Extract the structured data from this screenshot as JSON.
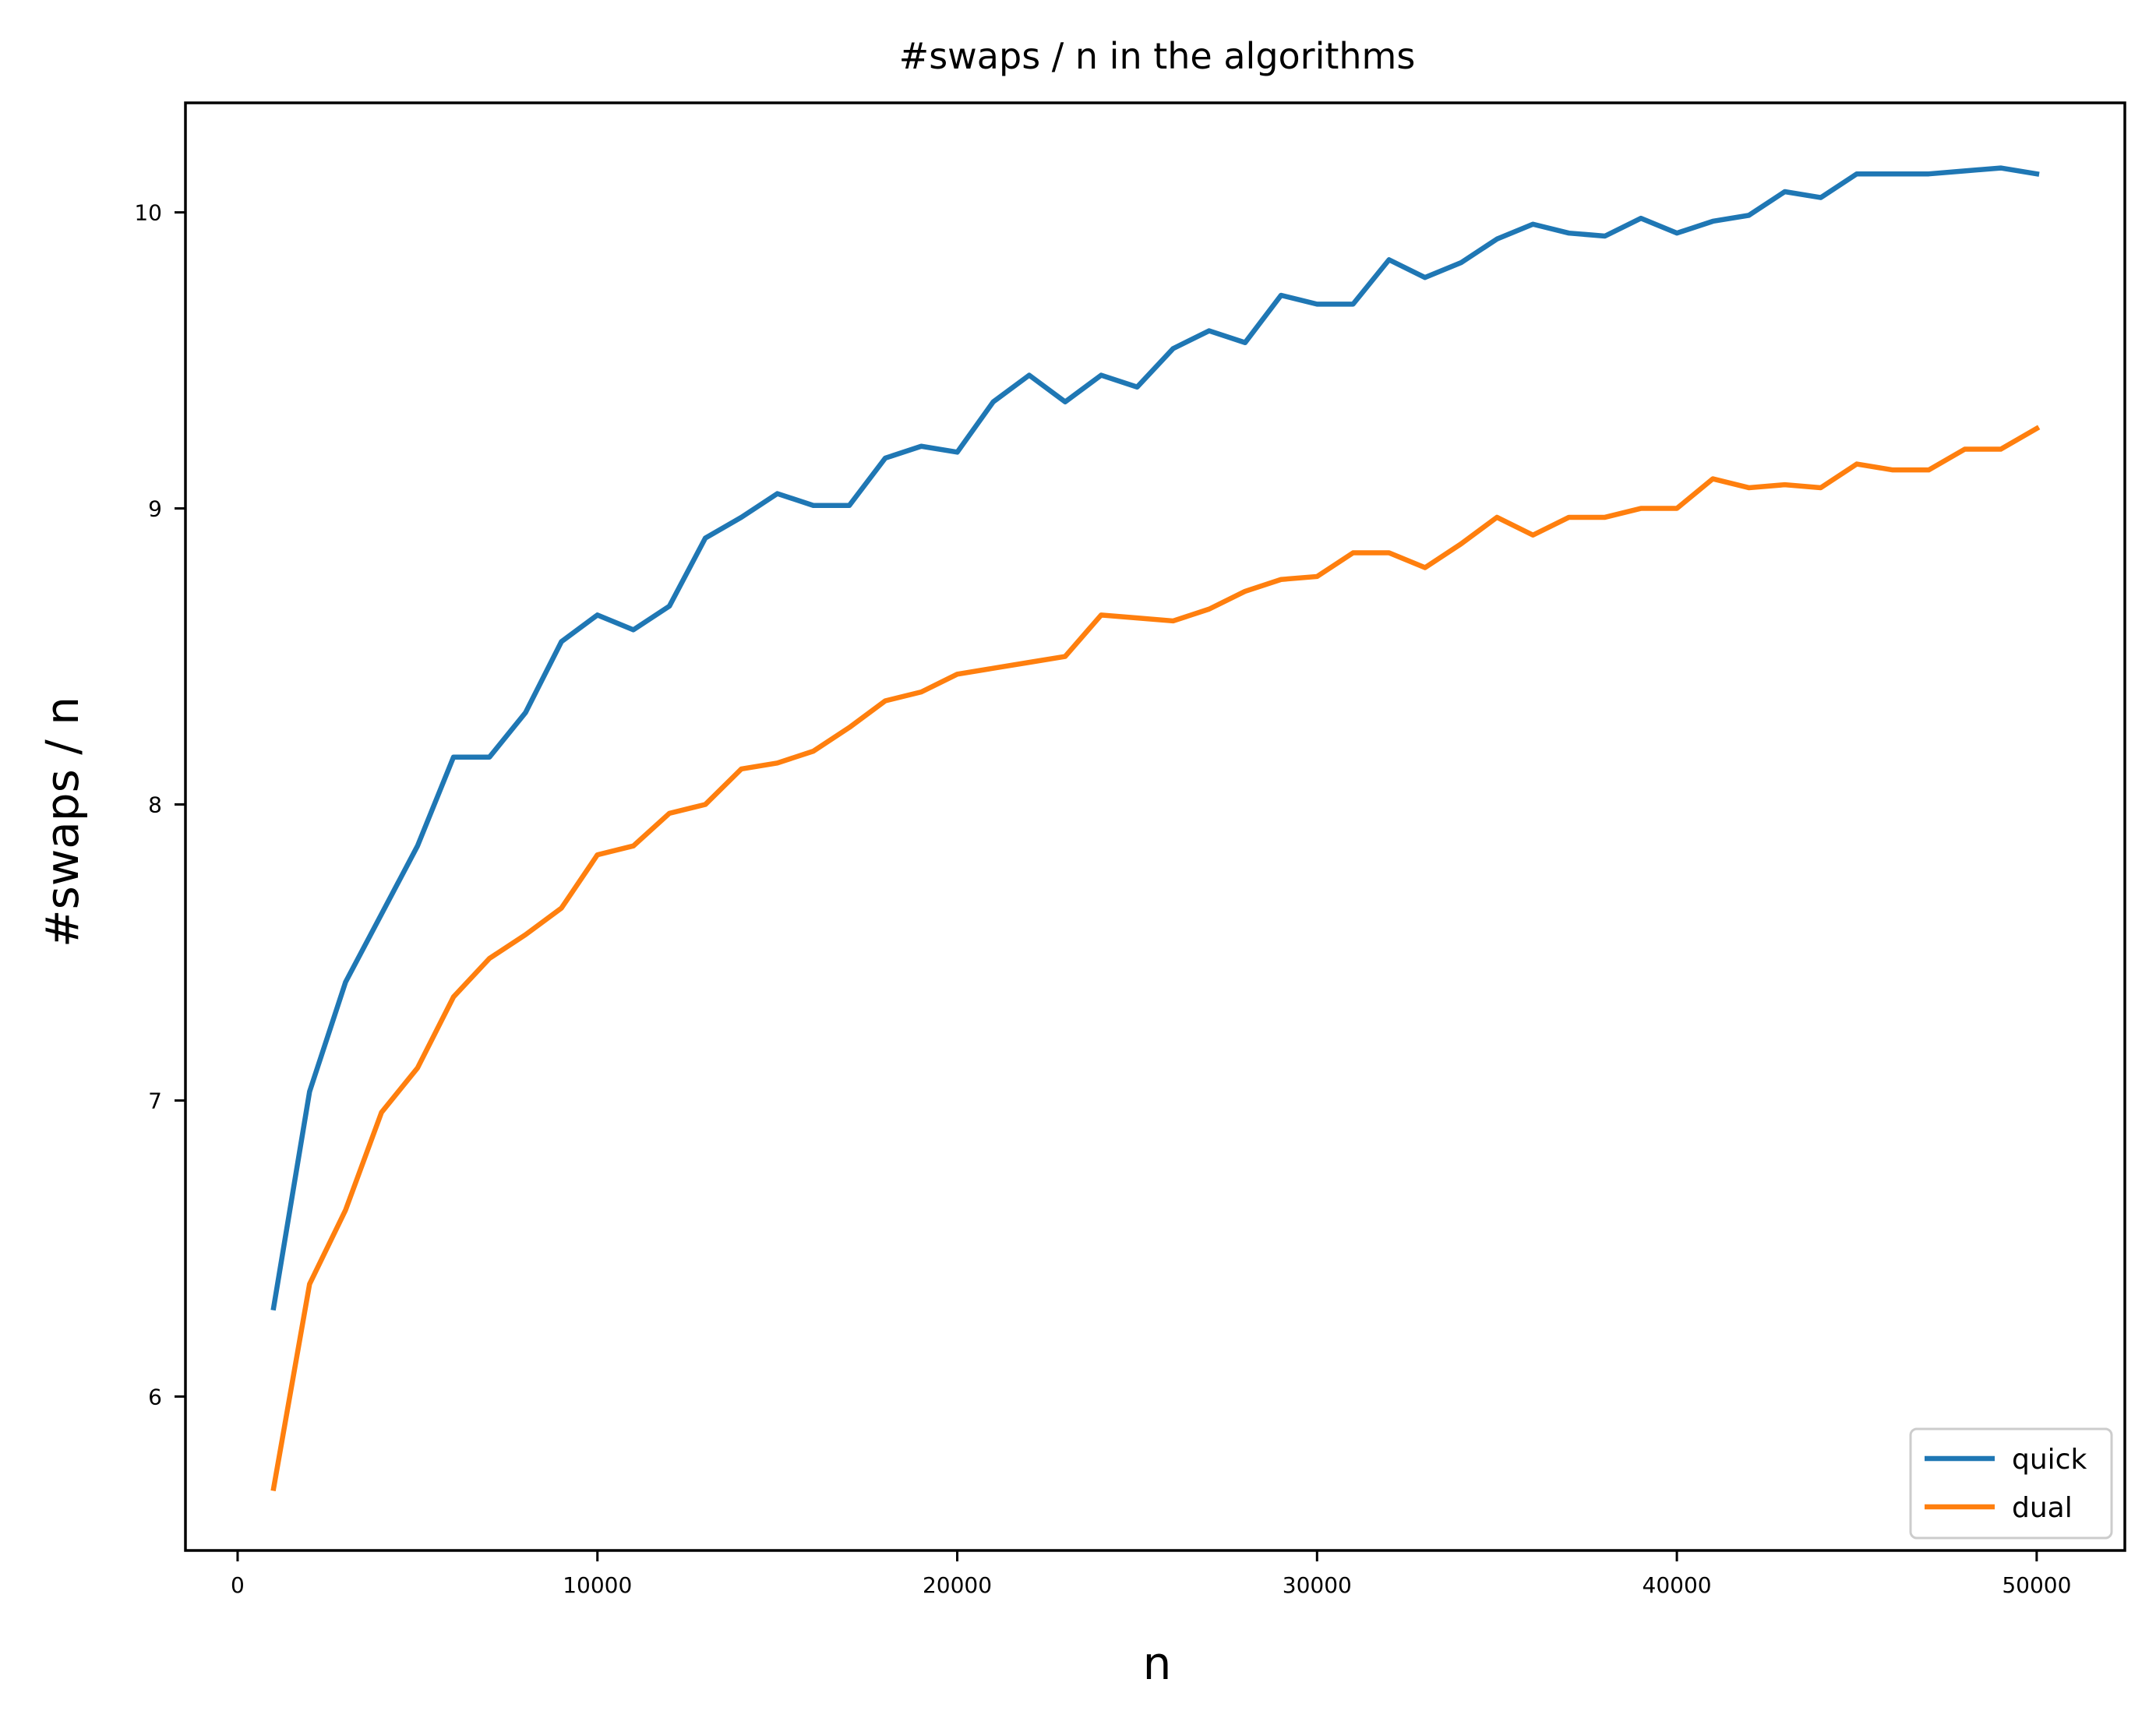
{
  "chart_data": {
    "type": "line",
    "title": "#swaps / n in the algorithms",
    "xlabel": "n",
    "ylabel": "#swaps / n",
    "xlim": [
      -1450,
      52450
    ],
    "ylim": [
      5.48,
      10.37
    ],
    "xticks": [
      0,
      10000,
      20000,
      30000,
      40000,
      50000
    ],
    "xtick_labels": [
      "0",
      "10000",
      "20000",
      "30000",
      "40000",
      "50000"
    ],
    "yticks": [
      6,
      7,
      8,
      9,
      10
    ],
    "ytick_labels": [
      "6",
      "7",
      "8",
      "9",
      "10"
    ],
    "grid": false,
    "legend_position": "lower-right",
    "x": [
      1000,
      2000,
      3000,
      4000,
      5000,
      6000,
      7000,
      8000,
      9000,
      10000,
      11000,
      12000,
      13000,
      14000,
      15000,
      16000,
      17000,
      18000,
      19000,
      20000,
      21000,
      22000,
      23000,
      24000,
      25000,
      26000,
      27000,
      28000,
      29000,
      30000,
      31000,
      32000,
      33000,
      34000,
      35000,
      36000,
      37000,
      38000,
      39000,
      40000,
      41000,
      42000,
      43000,
      44000,
      45000,
      46000,
      47000,
      48000,
      49000,
      50000
    ],
    "series": [
      {
        "name": "quick",
        "color": "#1f77b4",
        "values": [
          6.3,
          7.03,
          7.4,
          7.63,
          7.86,
          8.16,
          8.16,
          8.31,
          8.55,
          8.64,
          8.59,
          8.67,
          8.9,
          8.97,
          9.05,
          9.01,
          9.01,
          9.17,
          9.21,
          9.19,
          9.36,
          9.45,
          9.36,
          9.45,
          9.41,
          9.54,
          9.6,
          9.56,
          9.72,
          9.69,
          9.69,
          9.84,
          9.78,
          9.83,
          9.91,
          9.96,
          9.93,
          9.92,
          9.98,
          9.93,
          9.97,
          9.99,
          10.07,
          10.05,
          10.13,
          10.13,
          10.13,
          10.14,
          10.15,
          10.13
        ]
      },
      {
        "name": "dual",
        "color": "#ff7f0e",
        "values": [
          5.69,
          6.38,
          6.63,
          6.96,
          7.11,
          7.35,
          7.48,
          7.56,
          7.65,
          7.83,
          7.86,
          7.97,
          8.0,
          8.12,
          8.14,
          8.18,
          8.26,
          8.35,
          8.38,
          8.44,
          8.46,
          8.48,
          8.5,
          8.64,
          8.63,
          8.62,
          8.66,
          8.72,
          8.76,
          8.77,
          8.85,
          8.85,
          8.8,
          8.88,
          8.97,
          8.91,
          8.97,
          8.97,
          9.0,
          9.0,
          9.1,
          9.07,
          9.08,
          9.07,
          9.15,
          9.13,
          9.13,
          9.2,
          9.2,
          9.27
        ]
      }
    ]
  }
}
